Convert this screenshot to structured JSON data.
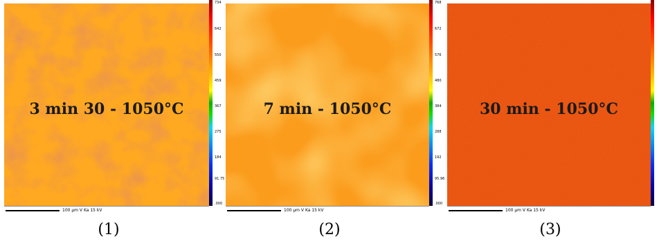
{
  "panels": [
    {
      "label": "3 min 30 - 1050°C",
      "caption": "(1)",
      "scale_text": "100 µm  V Ka  15 kV",
      "ticks": [
        "734",
        "642",
        "550",
        "459",
        "367",
        "275",
        "184",
        "91.75",
        ".000"
      ],
      "base_color": "#ff9a12",
      "spot_color": "#d04a14",
      "light_color": "#ffc23a"
    },
    {
      "label": "7 min - 1050°C",
      "caption": "(2)",
      "scale_text": "100 µm  V Ka  15 kV",
      "ticks": [
        "768",
        "672",
        "576",
        "480",
        "384",
        "288",
        "192",
        "95.96",
        ".000"
      ],
      "base_color": "#ffa51e",
      "spot_color": "#f08a1a",
      "light_color": "#ffbe38"
    },
    {
      "label": "30 min - 1050°C",
      "caption": "(3)",
      "scale_text": "100 µm  V Ka  15 kV",
      "ticks": [
        "",
        "",
        "",
        "",
        "",
        "",
        "",
        "",
        ""
      ],
      "base_color": "#ee5a12",
      "spot_color": "#e65010",
      "light_color": "#f56818"
    }
  ]
}
